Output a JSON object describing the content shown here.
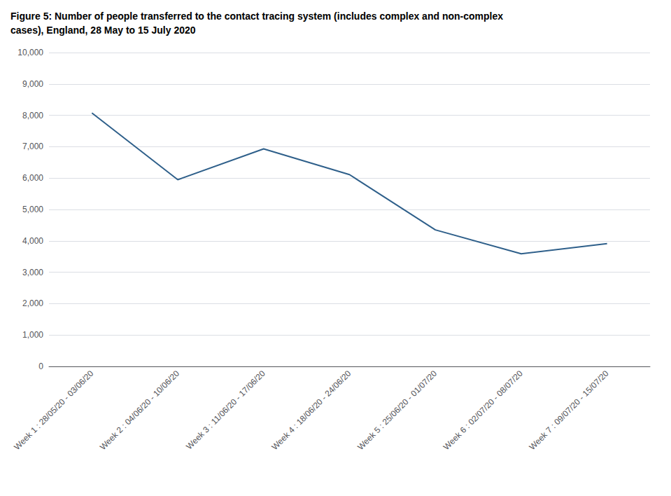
{
  "chart_data": {
    "type": "line",
    "title": "Figure 5: Number of people transferred to the contact tracing system (includes complex and non-complex\ncases), England, 28 May to 15 July 2020",
    "categories": [
      "Week 1 : 28/05/20 - 03/06/20",
      "Week 2 : 04/06/20 - 10/06/20",
      "Week 3 : 11/06/20 - 17/06/20",
      "Week 4 : 18/06/20 - 24/06/20",
      "Week 5 : 25/06/20 - 01/07/20",
      "Week 6 : 02/07/20 - 08/07/20",
      "Week 7 : 09/07/20 - 15/07/20"
    ],
    "values": [
      8076,
      5950,
      6930,
      6110,
      4350,
      3590,
      3910
    ],
    "color": "#2e5f8a",
    "ylim": [
      0,
      10000
    ],
    "yticks": [
      0,
      {
        "value": 1000,
        "label": "1,000"
      },
      {
        "value": 2000,
        "label": "2,000"
      },
      {
        "value": 3000,
        "label": "3,000"
      },
      {
        "value": 4000,
        "label": "4,000"
      },
      {
        "value": 5000,
        "label": "5,000"
      },
      {
        "value": 6000,
        "label": "6,000"
      },
      {
        "value": 7000,
        "label": "7,000"
      },
      {
        "value": 8000,
        "label": "8,000"
      },
      {
        "value": 9000,
        "label": "9,000"
      },
      {
        "value": 10000,
        "label": "10,000"
      }
    ],
    "grid": true
  }
}
